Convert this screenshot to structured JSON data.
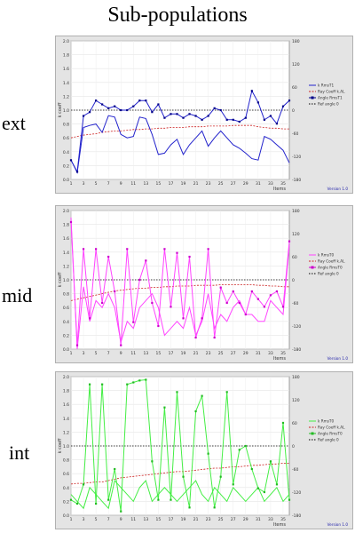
{
  "title": "Sub-populations",
  "labels": {
    "ext": "ext",
    "mid": "mid",
    "int": "int"
  },
  "chart_data": [
    {
      "type": "line",
      "name": "ext",
      "xlabel": "Items",
      "ylabel": "k coeff",
      "ylim": [
        0,
        2.0
      ],
      "y2lim": [
        -180,
        180
      ],
      "yticks": [
        0,
        0.2,
        0.4,
        0.6,
        0.8,
        1.0,
        1.2,
        1.4,
        1.6,
        1.8,
        2.0
      ],
      "y2ticks": [
        -180,
        -120,
        -60,
        0,
        60,
        120,
        180
      ],
      "xticks": [
        1,
        3,
        5,
        7,
        9,
        11,
        13,
        15,
        17,
        19,
        21,
        23,
        25,
        27,
        29,
        31,
        33,
        35
      ],
      "legend": [
        "k RmsT1",
        "Ray Coeff k.AL",
        "Angle RmsT1",
        "Ref angle 0"
      ],
      "legend_position": "right",
      "footer": "Version 1.0",
      "colors": {
        "k": "#2222cc",
        "angle": "#000088",
        "ray": "#cc2222",
        "ref": "#000000"
      },
      "x": [
        1,
        2,
        3,
        4,
        5,
        6,
        7,
        8,
        9,
        10,
        11,
        12,
        13,
        14,
        15,
        16,
        17,
        18,
        19,
        20,
        21,
        22,
        23,
        24,
        25,
        26,
        27,
        28,
        29,
        30,
        31,
        32,
        33,
        34,
        35,
        36
      ],
      "series_k": [
        0.28,
        0.1,
        0.75,
        0.78,
        0.8,
        0.68,
        0.92,
        0.9,
        0.65,
        0.6,
        0.62,
        0.9,
        0.88,
        0.65,
        0.36,
        0.38,
        0.5,
        0.58,
        0.36,
        0.5,
        0.6,
        0.7,
        0.48,
        0.6,
        0.7,
        0.6,
        0.5,
        0.45,
        0.38,
        0.3,
        0.28,
        0.62,
        0.58,
        0.5,
        0.42,
        0.24
      ],
      "series_angle": [
        -130,
        -160,
        -15,
        -5,
        25,
        15,
        5,
        10,
        0,
        0,
        10,
        25,
        25,
        -5,
        15,
        -20,
        -10,
        -10,
        -20,
        -10,
        -15,
        -25,
        -15,
        5,
        0,
        -25,
        -25,
        -30,
        -20,
        50,
        20,
        -25,
        -15,
        -35,
        10,
        25
      ],
      "series_ray": [
        0.6,
        0.62,
        0.64,
        0.65,
        0.66,
        0.68,
        0.69,
        0.7,
        0.7,
        0.71,
        0.72,
        0.72,
        0.73,
        0.73,
        0.74,
        0.74,
        0.75,
        0.75,
        0.75,
        0.76,
        0.76,
        0.76,
        0.77,
        0.77,
        0.77,
        0.77,
        0.78,
        0.78,
        0.78,
        0.78,
        0.76,
        0.75,
        0.74,
        0.74,
        0.73,
        0.73
      ],
      "ref": 0
    },
    {
      "type": "line",
      "name": "mid",
      "xlabel": "Items",
      "ylabel": "k coeff",
      "ylim": [
        0,
        2.0
      ],
      "y2lim": [
        -180,
        180
      ],
      "yticks": [
        0,
        0.2,
        0.4,
        0.6,
        0.8,
        1.0,
        1.2,
        1.4,
        1.6,
        1.8,
        2.0
      ],
      "y2ticks": [
        -180,
        -120,
        -60,
        0,
        60,
        120,
        180
      ],
      "xticks": [
        1,
        3,
        5,
        7,
        9,
        11,
        13,
        15,
        17,
        19,
        21,
        23,
        25,
        27,
        29,
        31,
        33,
        35
      ],
      "legend": [
        "k RmsT0",
        "Ray Coeff k.AL",
        "Angle RmsT0",
        "Ref angle 0"
      ],
      "legend_position": "right",
      "footer": "Version 1.0",
      "colors": {
        "k": "#ff44ff",
        "angle": "#cc00cc",
        "ray": "#cc2222",
        "ref": "#000000"
      },
      "x": [
        1,
        2,
        3,
        4,
        5,
        6,
        7,
        8,
        9,
        10,
        11,
        12,
        13,
        14,
        15,
        16,
        17,
        18,
        19,
        20,
        21,
        22,
        23,
        24,
        25,
        26,
        27,
        28,
        29,
        30,
        31,
        32,
        33,
        34,
        35,
        36
      ],
      "series_k": [
        1.9,
        0.0,
        0.9,
        0.4,
        0.7,
        0.6,
        0.8,
        0.6,
        0.1,
        0.4,
        0.3,
        0.6,
        0.7,
        0.8,
        0.6,
        0.2,
        0.3,
        0.4,
        0.3,
        0.6,
        0.2,
        0.4,
        0.8,
        0.3,
        0.5,
        0.4,
        0.6,
        0.7,
        0.5,
        0.5,
        0.4,
        0.4,
        0.7,
        0.6,
        0.5,
        1.5
      ],
      "series_angle": [
        150,
        -170,
        80,
        -100,
        80,
        -60,
        60,
        -30,
        -170,
        80,
        -110,
        0,
        50,
        -60,
        -120,
        80,
        -70,
        70,
        -100,
        60,
        -150,
        -100,
        80,
        -150,
        -20,
        -60,
        -30,
        -60,
        -90,
        -30,
        -50,
        -70,
        -40,
        -30,
        -70,
        100
      ],
      "series_ray": [
        0.7,
        0.72,
        0.74,
        0.76,
        0.78,
        0.8,
        0.82,
        0.84,
        0.85,
        0.86,
        0.87,
        0.88,
        0.88,
        0.89,
        0.89,
        0.9,
        0.9,
        0.91,
        0.91,
        0.91,
        0.92,
        0.92,
        0.92,
        0.92,
        0.93,
        0.93,
        0.93,
        0.93,
        0.93,
        0.93,
        0.92,
        0.92,
        0.91,
        0.91,
        0.9,
        0.9
      ],
      "ref": 0
    },
    {
      "type": "line",
      "name": "int",
      "xlabel": "Items",
      "ylabel": "k coeff",
      "ylim": [
        0,
        2.0
      ],
      "y2lim": [
        -180,
        180
      ],
      "yticks": [
        0,
        0.2,
        0.4,
        0.6,
        0.8,
        1.0,
        1.2,
        1.4,
        1.6,
        1.8,
        2.0
      ],
      "y2ticks": [
        -180,
        -120,
        -60,
        0,
        60,
        120,
        180
      ],
      "xticks": [
        1,
        3,
        5,
        7,
        9,
        11,
        13,
        15,
        17,
        19,
        21,
        23,
        25,
        27,
        29,
        31,
        33,
        35
      ],
      "legend": [
        "k RmsT0",
        "Ray Coeff k.AL",
        "Angle RmsT0",
        "Ref angle 0"
      ],
      "legend_position": "right",
      "footer": "Version 1.0",
      "colors": {
        "k": "#44ee44",
        "angle": "#22bb22",
        "ray": "#cc2222",
        "ref": "#000000"
      },
      "x": [
        1,
        2,
        3,
        4,
        5,
        6,
        7,
        8,
        9,
        10,
        11,
        12,
        13,
        14,
        15,
        16,
        17,
        18,
        19,
        20,
        21,
        22,
        23,
        24,
        25,
        26,
        27,
        28,
        29,
        30,
        31,
        32,
        33,
        34,
        35,
        36
      ],
      "series_k": [
        0.3,
        0.2,
        0.1,
        0.4,
        0.3,
        0.2,
        0.1,
        0.5,
        0.4,
        0.3,
        0.2,
        0.4,
        0.5,
        0.2,
        0.3,
        0.4,
        0.3,
        0.2,
        0.3,
        0.4,
        0.5,
        0.3,
        0.2,
        0.4,
        0.3,
        0.2,
        0.4,
        0.3,
        0.2,
        0.3,
        0.4,
        0.2,
        0.3,
        0.4,
        0.2,
        0.3
      ],
      "series_angle": [
        -140,
        -150,
        -100,
        160,
        -150,
        160,
        -140,
        -60,
        -170,
        160,
        165,
        170,
        172,
        -40,
        -140,
        100,
        -140,
        140,
        -80,
        -160,
        90,
        130,
        -20,
        -160,
        -80,
        140,
        -100,
        -10,
        0,
        -60,
        -110,
        -120,
        -40,
        -100,
        60,
        -140
      ],
      "series_ray": [
        0.45,
        0.46,
        0.46,
        0.47,
        0.48,
        0.48,
        0.5,
        0.52,
        0.54,
        0.55,
        0.56,
        0.57,
        0.58,
        0.59,
        0.6,
        0.61,
        0.62,
        0.63,
        0.63,
        0.64,
        0.65,
        0.66,
        0.67,
        0.68,
        0.68,
        0.69,
        0.7,
        0.7,
        0.71,
        0.72,
        0.72,
        0.73,
        0.74,
        0.74,
        0.75,
        0.75
      ],
      "ref": 0
    }
  ]
}
